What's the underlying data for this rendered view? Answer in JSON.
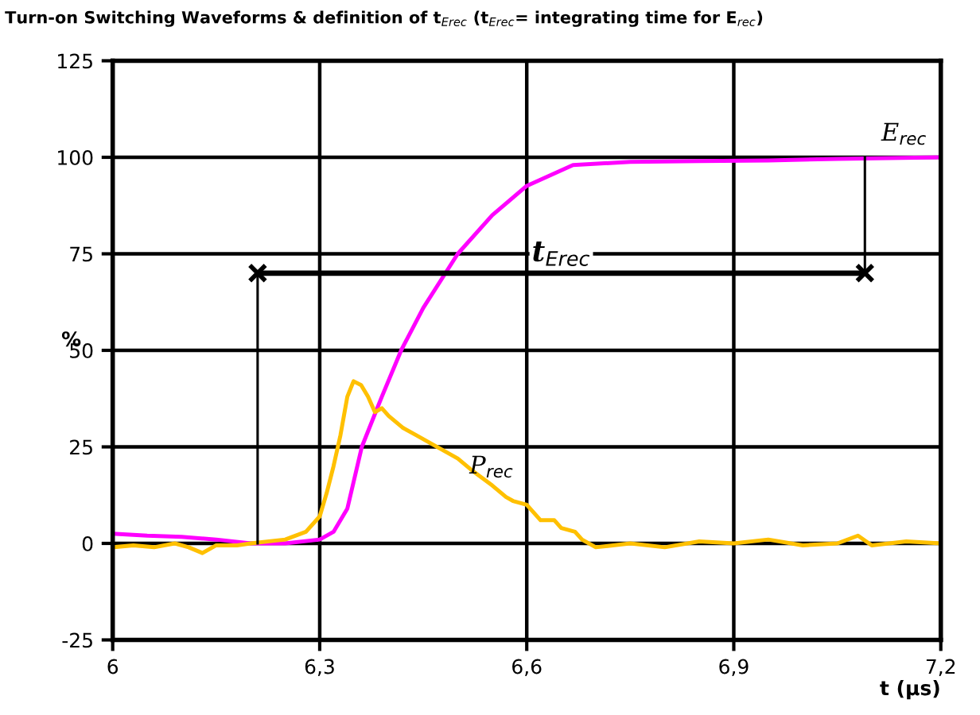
{
  "chart_data": {
    "type": "line",
    "title": "Turn-on Switching Waveforms & definition of t$_{Erec}$ (t$_{Erec}$= integrating time for E$_{rec}$)",
    "xlabel": "t (µs)",
    "ylabel": "%",
    "xlim": [
      6,
      7.2
    ],
    "xticks": [
      6,
      {
        "value": 6.3,
        "label": "6,3"
      },
      {
        "value": 6.6,
        "label": "6,6"
      },
      {
        "value": 6.9,
        "label": "6,9"
      },
      {
        "value": 7.2,
        "label": "7,2"
      }
    ],
    "ylim": [
      -25,
      125
    ],
    "yticks": [
      -25,
      0,
      25,
      50,
      75,
      100,
      125
    ],
    "grid": true,
    "legend": false,
    "marker": "none",
    "line_style": "solid",
    "series": [
      {
        "name": "E$_{rec}$",
        "color": "#ff00ff",
        "x": [
          6.0,
          6.05,
          6.1,
          6.15,
          6.2,
          6.25,
          6.3,
          6.32,
          6.34,
          6.361,
          6.39,
          6.418,
          6.45,
          6.5,
          6.55,
          6.6,
          6.667,
          6.75,
          6.85,
          6.95,
          7.05,
          7.2
        ],
        "values": [
          2.5,
          2,
          1.7,
          1,
          0,
          0,
          1,
          3,
          9,
          25,
          38,
          50,
          61,
          75,
          85,
          92.6,
          98,
          98.8,
          99,
          99.2,
          99.6,
          100
        ]
      },
      {
        "name": "P$_{rec}$",
        "color": "#ffc000",
        "x": [
          6.0,
          6.03,
          6.06,
          6.09,
          6.11,
          6.13,
          6.15,
          6.18,
          6.2,
          6.25,
          6.28,
          6.3,
          6.31,
          6.32,
          6.33,
          6.34,
          6.349,
          6.36,
          6.37,
          6.38,
          6.39,
          6.4,
          6.42,
          6.44,
          6.46,
          6.48,
          6.5,
          6.52,
          6.55,
          6.57,
          6.58,
          6.6,
          6.62,
          6.64,
          6.65,
          6.67,
          6.68,
          6.7,
          6.75,
          6.8,
          6.85,
          6.9,
          6.95,
          7.0,
          7.05,
          7.08,
          7.1,
          7.15,
          7.2
        ],
        "values": [
          -1,
          -0.5,
          -1,
          0,
          -1,
          -2.5,
          -0.5,
          -0.5,
          0,
          1,
          3,
          7,
          13,
          20,
          28,
          38,
          42,
          41,
          38,
          34,
          35,
          33,
          30,
          28,
          26,
          24,
          22,
          19,
          15,
          12,
          11,
          10,
          6,
          6,
          4,
          3,
          1,
          -1,
          0,
          -1,
          0.5,
          0,
          1,
          -0.5,
          0,
          2,
          -0.5,
          0.5,
          0
        ]
      },
      {
        "color": "#000000",
        "marker": "cross",
        "x": [
          6.21,
          7.09
        ],
        "values": [
          70,
          70
        ]
      },
      {
        "color": "#000000",
        "x": [
          6.21,
          6.21
        ],
        "values": [
          0,
          70
        ]
      },
      {
        "color": "#000000",
        "x": [
          7.09,
          7.09
        ],
        "values": [
          70,
          100
        ]
      }
    ],
    "annotations": [
      "t$_{Erec}$"
    ]
  }
}
